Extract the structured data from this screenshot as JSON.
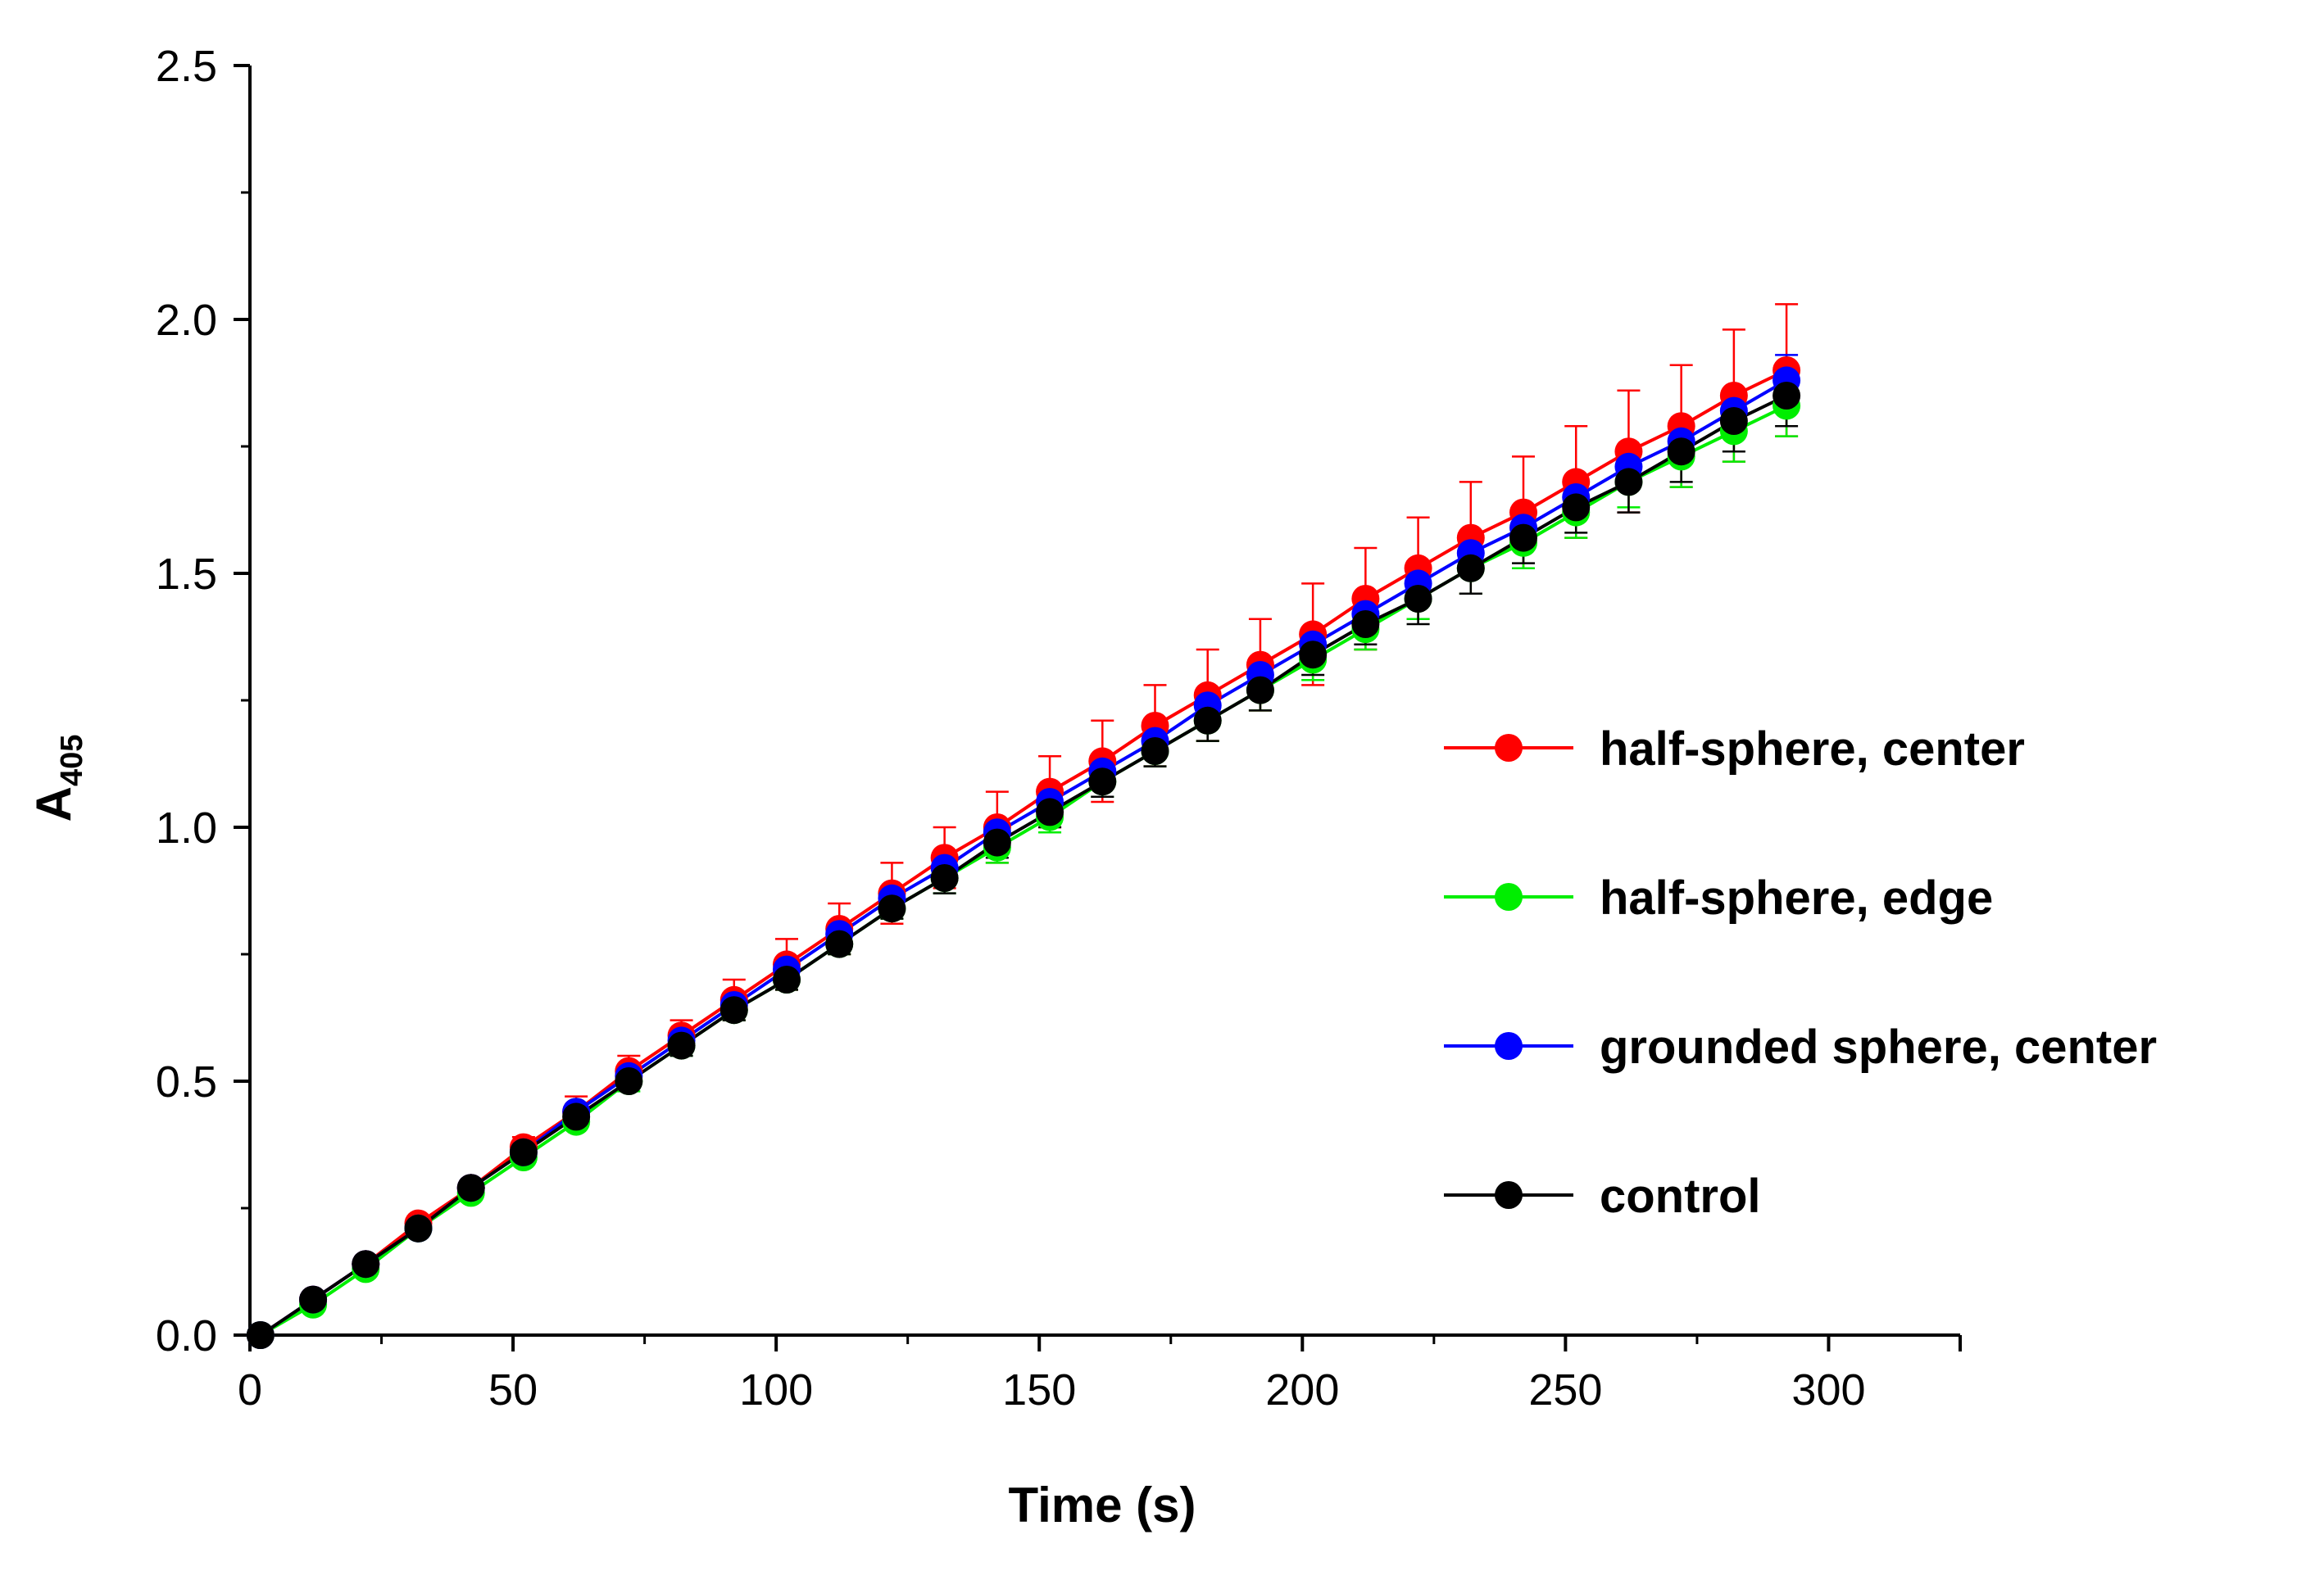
{
  "chart_data": {
    "type": "line",
    "title": "",
    "xlabel": "Time (s)",
    "ylabel_main": "A",
    "ylabel_sub": "405",
    "xlim": [
      0,
      325
    ],
    "ylim": [
      0,
      2.5
    ],
    "xticks": [
      0,
      50,
      100,
      150,
      200,
      250,
      300
    ],
    "xtick_labels": [
      "0",
      "50",
      "100",
      "150",
      "200",
      "250",
      "300"
    ],
    "yticks": [
      0.0,
      0.5,
      1.0,
      1.5,
      2.0,
      2.5
    ],
    "ytick_labels": [
      "0.0",
      "0.5",
      "1.0",
      "1.5",
      "2.0",
      "2.5"
    ],
    "grid": false,
    "legend_position": "right",
    "x": [
      2,
      12,
      22,
      32,
      42,
      52,
      62,
      72,
      82,
      92,
      102,
      112,
      122,
      132,
      142,
      152,
      162,
      172,
      182,
      192,
      202,
      212,
      222,
      232,
      242,
      252,
      262,
      272,
      282,
      292
    ],
    "series": [
      {
        "name": "half-sphere, center",
        "color": "#ff0000",
        "values": [
          0.0,
          0.07,
          0.14,
          0.22,
          0.29,
          0.37,
          0.44,
          0.52,
          0.59,
          0.66,
          0.73,
          0.8,
          0.87,
          0.94,
          1.0,
          1.07,
          1.13,
          1.2,
          1.26,
          1.32,
          1.38,
          1.45,
          1.51,
          1.57,
          1.62,
          1.68,
          1.74,
          1.79,
          1.85,
          1.9
        ],
        "errors": [
          0.0,
          0.01,
          0.01,
          0.01,
          0.01,
          0.02,
          0.03,
          0.03,
          0.03,
          0.04,
          0.05,
          0.05,
          0.06,
          0.06,
          0.07,
          0.07,
          0.08,
          0.08,
          0.09,
          0.09,
          0.1,
          0.1,
          0.1,
          0.11,
          0.11,
          0.11,
          0.12,
          0.12,
          0.13,
          0.13
        ]
      },
      {
        "name": "half-sphere, edge",
        "color": "#00ee00",
        "values": [
          0.0,
          0.06,
          0.13,
          0.21,
          0.28,
          0.35,
          0.42,
          0.5,
          0.57,
          0.64,
          0.7,
          0.77,
          0.84,
          0.9,
          0.96,
          1.02,
          1.09,
          1.15,
          1.21,
          1.27,
          1.33,
          1.39,
          1.45,
          1.51,
          1.56,
          1.62,
          1.68,
          1.73,
          1.78,
          1.83
        ],
        "errors": [
          0.0,
          0.01,
          0.01,
          0.01,
          0.01,
          0.01,
          0.01,
          0.02,
          0.02,
          0.02,
          0.02,
          0.02,
          0.02,
          0.03,
          0.03,
          0.03,
          0.03,
          0.03,
          0.04,
          0.04,
          0.04,
          0.04,
          0.04,
          0.05,
          0.05,
          0.05,
          0.05,
          0.06,
          0.06,
          0.06
        ]
      },
      {
        "name": "grounded sphere, center",
        "color": "#0000ff",
        "values": [
          0.0,
          0.07,
          0.14,
          0.21,
          0.29,
          0.36,
          0.44,
          0.51,
          0.58,
          0.65,
          0.72,
          0.79,
          0.86,
          0.92,
          0.99,
          1.05,
          1.11,
          1.17,
          1.24,
          1.3,
          1.36,
          1.42,
          1.48,
          1.54,
          1.59,
          1.65,
          1.71,
          1.76,
          1.82,
          1.88
        ],
        "errors": [
          0.0,
          0.01,
          0.01,
          0.01,
          0.01,
          0.01,
          0.01,
          0.01,
          0.01,
          0.01,
          0.01,
          0.02,
          0.02,
          0.02,
          0.02,
          0.02,
          0.02,
          0.02,
          0.02,
          0.03,
          0.03,
          0.03,
          0.03,
          0.03,
          0.03,
          0.03,
          0.04,
          0.04,
          0.04,
          0.05
        ]
      },
      {
        "name": "control",
        "color": "#000000",
        "values": [
          0.0,
          0.07,
          0.14,
          0.21,
          0.29,
          0.36,
          0.43,
          0.5,
          0.57,
          0.64,
          0.7,
          0.77,
          0.84,
          0.9,
          0.97,
          1.03,
          1.09,
          1.15,
          1.21,
          1.27,
          1.34,
          1.4,
          1.45,
          1.51,
          1.57,
          1.63,
          1.68,
          1.74,
          1.8,
          1.85
        ],
        "errors": [
          0.0,
          0.01,
          0.01,
          0.01,
          0.01,
          0.01,
          0.01,
          0.01,
          0.02,
          0.02,
          0.02,
          0.02,
          0.02,
          0.03,
          0.03,
          0.03,
          0.03,
          0.03,
          0.04,
          0.04,
          0.04,
          0.04,
          0.05,
          0.05,
          0.05,
          0.05,
          0.06,
          0.06,
          0.06,
          0.06
        ]
      }
    ]
  }
}
